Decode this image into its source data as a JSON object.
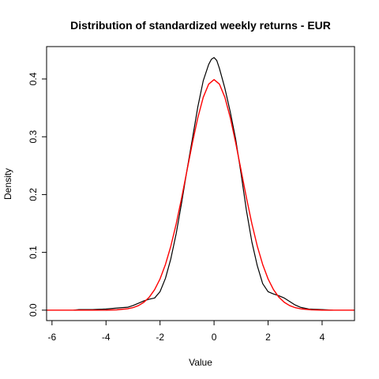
{
  "chart_data": {
    "type": "line",
    "title": "Distribution of standardized weekly returns - EUR",
    "xlabel": "Value",
    "ylabel": "Density",
    "xlim": [
      -6.2,
      5.2
    ],
    "ylim": [
      -0.018,
      0.456
    ],
    "xticks": [
      -6,
      -4,
      -2,
      0,
      2,
      4
    ],
    "xtick_labels": [
      "-6",
      "-4",
      "-2",
      "0",
      "2",
      "4"
    ],
    "yticks": [
      0.0,
      0.1,
      0.2,
      0.3,
      0.4
    ],
    "ytick_labels": [
      "0.0",
      "0.1",
      "0.2",
      "0.3",
      "0.4"
    ],
    "grid": false,
    "series": [
      {
        "color": "#000000",
        "x": [
          -5.2,
          -5.0,
          -4.5,
          -4.0,
          -3.5,
          -3.2,
          -3.0,
          -2.8,
          -2.6,
          -2.4,
          -2.2,
          -2.0,
          -1.8,
          -1.6,
          -1.4,
          -1.2,
          -1.0,
          -0.8,
          -0.6,
          -0.4,
          -0.2,
          -0.1,
          0.0,
          0.1,
          0.2,
          0.4,
          0.6,
          0.8,
          1.0,
          1.2,
          1.4,
          1.6,
          1.8,
          2.0,
          2.2,
          2.4,
          2.6,
          2.8,
          3.0,
          3.2,
          3.5,
          4.0,
          4.4
        ],
        "y": [
          0.0,
          0.001,
          0.001,
          0.002,
          0.004,
          0.005,
          0.008,
          0.012,
          0.016,
          0.019,
          0.021,
          0.032,
          0.055,
          0.089,
          0.133,
          0.186,
          0.243,
          0.297,
          0.352,
          0.397,
          0.425,
          0.434,
          0.437,
          0.432,
          0.418,
          0.384,
          0.343,
          0.296,
          0.236,
          0.172,
          0.118,
          0.077,
          0.046,
          0.032,
          0.028,
          0.025,
          0.021,
          0.015,
          0.009,
          0.005,
          0.002,
          0.001,
          0.0
        ]
      },
      {
        "color": "#ff0000",
        "x": [
          -6.2,
          -5.0,
          -4.5,
          -4.0,
          -3.6,
          -3.2,
          -3.0,
          -2.8,
          -2.6,
          -2.4,
          -2.2,
          -2.0,
          -1.8,
          -1.6,
          -1.4,
          -1.2,
          -1.0,
          -0.8,
          -0.6,
          -0.4,
          -0.2,
          0.0,
          0.2,
          0.4,
          0.6,
          0.8,
          1.0,
          1.2,
          1.4,
          1.6,
          1.8,
          2.0,
          2.2,
          2.4,
          2.6,
          2.8,
          3.0,
          3.2,
          3.6,
          4.0,
          4.5,
          5.2
        ],
        "y": [
          0.0,
          0.0,
          0.0,
          0.0001,
          0.0006,
          0.0024,
          0.0044,
          0.0079,
          0.0136,
          0.0224,
          0.0355,
          0.054,
          0.079,
          0.1109,
          0.1497,
          0.1942,
          0.242,
          0.2897,
          0.3332,
          0.3683,
          0.391,
          0.3989,
          0.391,
          0.3683,
          0.3332,
          0.2897,
          0.242,
          0.1942,
          0.1497,
          0.1109,
          0.079,
          0.054,
          0.0355,
          0.0224,
          0.0136,
          0.0079,
          0.0044,
          0.0024,
          0.0006,
          0.0001,
          0.0,
          0.0
        ]
      }
    ]
  }
}
